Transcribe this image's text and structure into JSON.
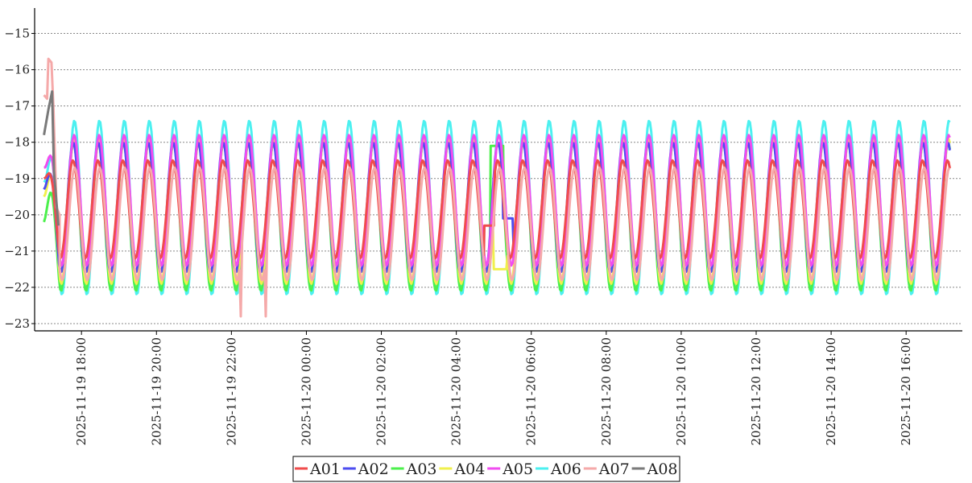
{
  "chart_data": {
    "type": "line",
    "title": "",
    "xlabel": "",
    "ylabel": "",
    "grid": "horizontal dotted",
    "legend_position": "bottom",
    "ylim": [
      -23.2,
      -14.3
    ],
    "xlim": [
      "2025-11-19 16:45",
      "2025-11-20 17:30"
    ],
    "y_ticks": [
      -15,
      -16,
      -17,
      -18,
      -19,
      -20,
      -21,
      -22,
      -23
    ],
    "x_ticks": [
      {
        "time": "2025-11-19 18:00",
        "label": "2025-11-19  18:00"
      },
      {
        "time": "2025-11-19 20:00",
        "label": "2025-11-19  20:00"
      },
      {
        "time": "2025-11-19 22:00",
        "label": "2025-11-19  22:00"
      },
      {
        "time": "2025-11-20 00:00",
        "label": "2025-11-20  00:00"
      },
      {
        "time": "2025-11-20 02:00",
        "label": "2025-11-20  02:00"
      },
      {
        "time": "2025-11-20 04:00",
        "label": "2025-11-20  04:00"
      },
      {
        "time": "2025-11-20 06:00",
        "label": "2025-11-20  06:00"
      },
      {
        "time": "2025-11-20 08:00",
        "label": "2025-11-20  08:00"
      },
      {
        "time": "2025-11-20 10:00",
        "label": "2025-11-20  10:00"
      },
      {
        "time": "2025-11-20 12:00",
        "label": "2025-11-20  12:00"
      },
      {
        "time": "2025-11-20 14:00",
        "label": "2025-11-20  14:00"
      },
      {
        "time": "2025-11-20 16:00",
        "label": "2025-11-20  16:00"
      }
    ],
    "oscillation": {
      "start": "2025-11-19 17:00",
      "end": "2025-11-20 17:10",
      "period_minutes": 40
    },
    "series": [
      {
        "name": "A01",
        "color": "#f04c4c",
        "peak": -18.5,
        "trough": -21.2,
        "start": {
          "time": "2025-11-19 17:00",
          "value": -19.0
        },
        "hold": {
          "start": "2025-11-20 04:45",
          "end": "2025-11-20 05:00",
          "value": -20.3
        }
      },
      {
        "name": "A02",
        "color": "#4c4cf0",
        "peak": -18.0,
        "trough": -21.6,
        "start": {
          "time": "2025-11-19 17:00",
          "value": -19.3
        },
        "hold": {
          "start": "2025-11-20 05:15",
          "end": "2025-11-20 05:30",
          "value": -20.1
        }
      },
      {
        "name": "A03",
        "color": "#4cf04c",
        "peak": -18.0,
        "trough": -22.1,
        "start": {
          "time": "2025-11-19 17:00",
          "value": -20.2
        },
        "hold": {
          "start": "2025-11-20 04:55",
          "end": "2025-11-20 05:15",
          "value": -18.1
        }
      },
      {
        "name": "A04",
        "color": "#f0f04c",
        "peak": -17.9,
        "trough": -21.9,
        "start": {
          "time": "2025-11-19 17:00",
          "value": -19.5
        },
        "hold": {
          "start": "2025-11-20 05:00",
          "end": "2025-11-20 05:20",
          "value": -21.5
        }
      },
      {
        "name": "A05",
        "color": "#f04cf0",
        "peak": -17.8,
        "trough": -21.4,
        "start": {
          "time": "2025-11-19 17:00",
          "value": -18.7
        },
        "hold": null
      },
      {
        "name": "A06",
        "color": "#4cf0f0",
        "peak": -17.4,
        "trough": -22.2,
        "start": {
          "time": "2025-11-19 17:00",
          "value": -19.1
        },
        "hold": null
      },
      {
        "name": "A07",
        "color": "#f5a9a9",
        "peak": -18.7,
        "trough": -21.8,
        "start": {
          "time": "2025-11-19 17:00",
          "value": -16.7
        },
        "early": [
          {
            "time": "2025-11-19 17:00",
            "value": -16.7
          },
          {
            "time": "2025-11-19 17:05",
            "value": -16.8
          },
          {
            "time": "2025-11-19 17:07",
            "value": -15.7
          },
          {
            "time": "2025-11-19 17:12",
            "value": -15.8
          },
          {
            "time": "2025-11-19 17:15",
            "value": -17.0
          },
          {
            "time": "2025-11-19 17:20",
            "value": -19.8
          },
          {
            "time": "2025-11-19 17:25",
            "value": -20.0
          }
        ],
        "spikes": [
          {
            "time": "2025-11-19 22:15",
            "value": -22.8
          },
          {
            "time": "2025-11-19 22:55",
            "value": -22.8
          }
        ],
        "hold": null
      },
      {
        "name": "A08",
        "color": "#7a7a7a",
        "points": [
          {
            "time": "2025-11-19 17:00",
            "value": -17.8
          },
          {
            "time": "2025-11-19 17:07",
            "value": -17.1
          },
          {
            "time": "2025-11-19 17:13",
            "value": -16.6
          },
          {
            "time": "2025-11-19 17:16",
            "value": -18.8
          },
          {
            "time": "2025-11-19 17:23",
            "value": -20.3
          }
        ]
      }
    ]
  }
}
